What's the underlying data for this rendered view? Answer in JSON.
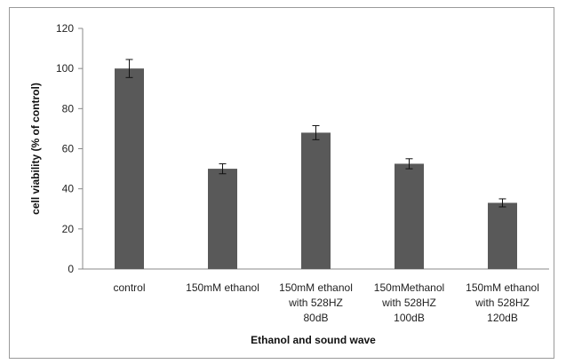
{
  "chart_data": {
    "type": "bar",
    "categories": [
      [
        "control"
      ],
      [
        "150mM ethanol"
      ],
      [
        "150mM ethanol",
        "with 528HZ",
        "80dB"
      ],
      [
        "150mMethanol",
        "with 528HZ",
        "100dB"
      ],
      [
        "150mM ethanol",
        "with 528HZ",
        "120dB"
      ]
    ],
    "values": [
      100,
      50,
      68,
      52.5,
      33
    ],
    "errors": [
      4.5,
      2.5,
      3.5,
      2.5,
      2
    ],
    "title": "",
    "xlabel": "Ethanol and sound wave",
    "ylabel": "cell viability (% of control)",
    "ylim": [
      0,
      120
    ],
    "yticks": [
      0,
      20,
      40,
      60,
      80,
      100,
      120
    ],
    "grid": false,
    "legend": "none",
    "bar_color": "#595959"
  }
}
